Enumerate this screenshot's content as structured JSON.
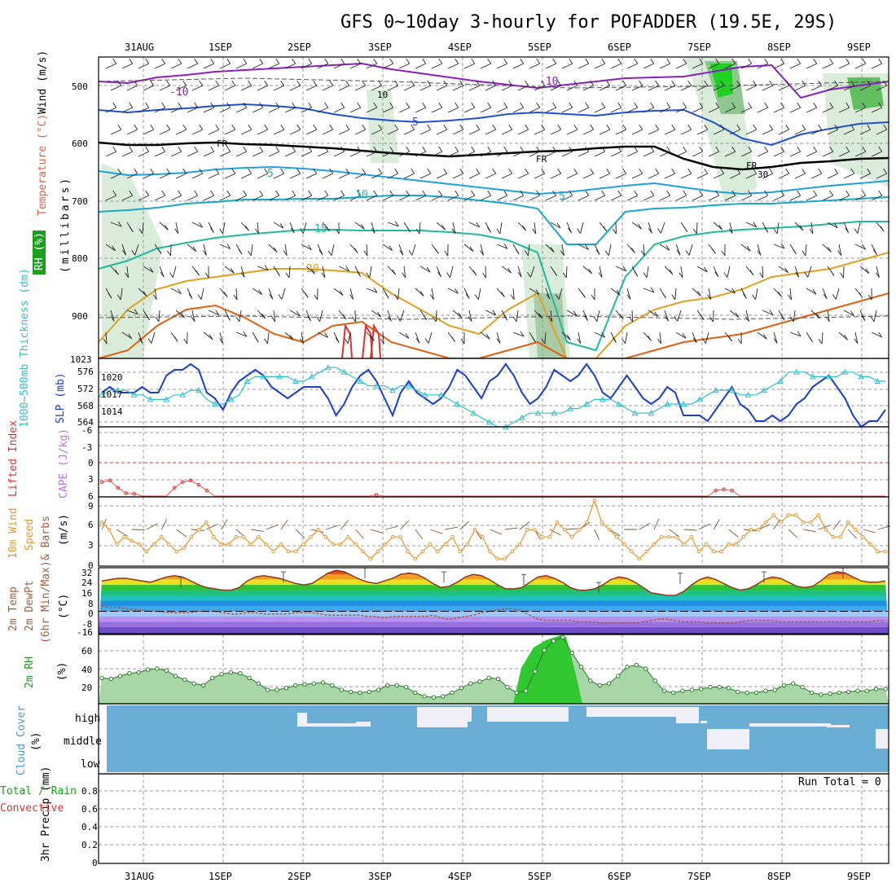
{
  "title": "GFS 0~10day 3-hourly for POFADDER (19.5E, 29S)",
  "dates": [
    "31AUG",
    "1SEP",
    "2SEP",
    "3SEP",
    "4SEP",
    "5SEP",
    "6SEP",
    "7SEP",
    "8SEP",
    "9SEP"
  ],
  "colors": {
    "temp_neg": "#8a1fc0",
    "temp_cold": "#2050d0",
    "temp_zero": "#1fa0e0",
    "temp_warm": "#20b8a0",
    "temp_hot": "#e0a020",
    "temp_hotter": "#e06010",
    "slp": "#1a3fc8",
    "thickness": "#30c0c8",
    "lifted": "#e03030",
    "wind": "#e8962a",
    "dewpt": "#a06040",
    "rh": "#1aa01a",
    "cloud": "#6aaed6",
    "cloud_gap": "#f0eef6"
  },
  "panels": {
    "upper": {
      "ylabel_wind": "Wind (m/s)",
      "ylabel_temp": "Temperature (°C)",
      "ylabel_mb": "(millibars)",
      "ylabel_rh": "RH (%)",
      "levels": [
        "500",
        "600",
        "700",
        "800",
        "900"
      ],
      "contour_labels": [
        "-10",
        "-10",
        "5",
        "FR",
        "FR",
        "FR",
        "5",
        "5",
        "10",
        "15",
        "20",
        "10",
        "30"
      ]
    },
    "slp": {
      "ylabel_thick": "1000~500mb Thickness (dm)",
      "ylabel_slp": "SLP (mb)",
      "left_ticks": [
        "576",
        "572",
        "568",
        "564"
      ],
      "right_ticks": [
        "1023",
        "1020",
        "1017",
        "1014"
      ]
    },
    "cape": {
      "ylabel_li": "Lifted Index",
      "ylabel_cape": "CAPE (J/kg)",
      "ticks": [
        "-6",
        "-3",
        "0",
        "3",
        "6"
      ]
    },
    "wind10": {
      "ylabel_a": "10m Wind",
      "ylabel_b": "Speed",
      "ylabel_c": "& Barbs",
      "ylabel_unit": "(m/s)",
      "ticks": [
        "9",
        "6",
        "3",
        "0"
      ]
    },
    "temp2m": {
      "ylabel_a": "2m Temp",
      "ylabel_b": "2m DewPt",
      "ylabel_c": "(6hr Min/Max)",
      "ylabel_unit": "(°C)",
      "ticks": [
        "32",
        "24",
        "16",
        "8",
        "0",
        "-8",
        "-16"
      ]
    },
    "rh2m": {
      "ylabel": "2m RH",
      "ylabel_unit": "(%)",
      "ticks": [
        "60",
        "40",
        "20"
      ]
    },
    "cloud": {
      "ylabel": "Cloud Cover",
      "ylabel_unit": "(%)",
      "levels": [
        "high",
        "middle",
        "low"
      ]
    },
    "precip": {
      "ylabel_a": "3hr Precip (mm)",
      "ylabel_b": "Total / Rain",
      "ylabel_c": "Convective",
      "ticks": [
        "0.8",
        "0.6",
        "0.4",
        "0.2",
        "0"
      ],
      "run_total": "Run Total = 0"
    }
  },
  "chart_data": [
    {
      "type": "line",
      "title": "Sea level pressure (mb)",
      "x": "3-hourly, 30 Aug 18Z to 9 Sep 18Z",
      "ylim": [
        1011,
        1023
      ],
      "values": [
        1017,
        1018,
        1017,
        1017,
        1017,
        1018,
        1017,
        1017,
        1020,
        1021,
        1021,
        1022,
        1021,
        1017,
        1016,
        1014,
        1017,
        1019,
        1020,
        1021,
        1020,
        1018,
        1017,
        1016,
        1017,
        1018,
        1018,
        1018,
        1016,
        1013,
        1015,
        1018,
        1020,
        1021,
        1019,
        1016,
        1013,
        1017,
        1019,
        1017,
        1016,
        1015,
        1016,
        1018,
        1021,
        1020,
        1018,
        1016,
        1019,
        1020,
        1022,
        1020,
        1017,
        1015,
        1016,
        1018,
        1021,
        1020,
        1019,
        1020,
        1022,
        1020,
        1017,
        1016,
        1018,
        1020,
        1018,
        1016,
        1015,
        1016,
        1018,
        1017,
        1013,
        1013,
        1013,
        1012,
        1014,
        1016,
        1018,
        1015,
        1014,
        1012,
        1012,
        1013,
        1012,
        1013,
        1015,
        1016,
        1018,
        1019,
        1020,
        1018,
        1016,
        1013,
        1011,
        1012,
        1012,
        1014
      ]
    },
    {
      "type": "line",
      "title": "1000~500mb thickness (dm)",
      "ylim": [
        563,
        578
      ],
      "values": [
        570,
        571,
        571,
        571,
        570,
        570,
        569,
        569,
        569,
        570,
        570,
        571,
        571,
        569,
        568,
        568,
        569,
        570,
        573,
        574,
        574,
        574,
        574,
        574,
        573,
        573,
        574,
        575,
        576,
        576,
        575,
        574,
        573,
        572,
        572,
        572,
        571,
        572,
        572,
        571,
        570,
        570,
        570,
        569,
        568,
        567,
        566,
        565,
        564,
        563,
        563,
        564,
        565,
        566,
        566,
        566,
        566,
        566,
        567,
        567,
        568,
        569,
        569,
        569,
        568,
        567,
        566,
        566,
        566,
        567,
        568,
        568,
        568,
        568,
        569,
        570,
        571,
        571,
        571,
        570,
        570,
        570,
        571,
        572,
        573,
        575,
        575,
        575,
        574,
        574,
        574,
        574,
        575,
        575,
        574,
        574,
        573,
        573
      ]
    },
    {
      "type": "line",
      "title": "Lifted Index",
      "ylim": [
        6,
        -6
      ],
      "values": [
        3.5,
        3.2,
        4.5,
        5.5,
        5.6,
        6,
        6,
        6,
        6,
        4.5,
        3.5,
        3.2,
        4,
        5,
        6,
        6,
        6,
        6,
        6,
        6,
        6,
        6,
        6,
        6,
        6,
        6,
        6,
        6,
        6,
        6,
        6,
        6,
        6,
        6,
        5.8,
        6,
        6,
        6,
        6,
        6,
        6,
        6,
        6,
        6,
        6,
        6,
        6,
        6,
        6,
        6,
        6,
        6,
        6,
        6,
        6,
        6,
        6,
        6,
        6,
        6,
        6,
        6,
        6,
        6,
        6,
        6,
        6,
        6,
        6,
        6,
        6,
        6,
        6,
        6,
        6,
        6,
        5,
        4.8,
        5,
        6,
        6,
        6,
        6,
        6,
        6,
        6,
        6,
        6,
        6,
        6,
        6,
        6,
        6,
        6,
        6,
        6,
        6,
        6
      ]
    },
    {
      "type": "line",
      "title": "10m wind speed (m/s)",
      "ylim": [
        0,
        9.5
      ],
      "values": [
        6,
        5,
        3,
        4,
        3.5,
        3,
        2,
        3,
        4,
        3,
        2,
        2.5,
        4,
        5,
        6,
        4,
        3,
        3,
        4,
        4,
        3,
        4,
        3,
        2,
        3,
        2,
        2,
        3,
        4,
        5,
        4,
        3,
        3,
        4,
        3,
        2,
        1,
        2,
        3,
        4,
        4,
        2,
        1,
        2,
        3,
        2,
        3,
        4,
        2,
        3,
        5,
        4,
        2,
        1,
        1,
        2,
        3,
        5,
        5,
        4,
        4,
        6,
        5,
        4,
        5,
        6,
        9,
        6,
        5,
        4,
        3,
        2,
        1,
        2,
        3,
        4,
        4,
        4,
        3,
        4,
        2,
        3,
        2,
        2,
        3,
        3,
        4,
        5,
        5,
        6,
        7,
        6,
        7,
        7,
        6,
        6,
        7,
        5,
        4,
        4,
        6,
        5,
        4,
        3,
        2,
        2
      ]
    },
    {
      "type": "area",
      "title": "2m temperature (°C)",
      "ylim": [
        -17,
        33
      ],
      "values": [
        23,
        24,
        25,
        25,
        24,
        23,
        22,
        24,
        26,
        27,
        26,
        23,
        20,
        18,
        17,
        16,
        16,
        18,
        23,
        26,
        27,
        26,
        25,
        23,
        21,
        20,
        21,
        25,
        29,
        31,
        30,
        27,
        24,
        22,
        21,
        23,
        25,
        28,
        29,
        28,
        25,
        21,
        18,
        19,
        22,
        26,
        28,
        27,
        24,
        20,
        17,
        17,
        18,
        22,
        26,
        27,
        25,
        22,
        18,
        16,
        16,
        17,
        20,
        24,
        26,
        25,
        22,
        18,
        14,
        13,
        12,
        12,
        15,
        20,
        24,
        26,
        24,
        21,
        18,
        16,
        17,
        20,
        24,
        26,
        25,
        22,
        19,
        18,
        19,
        23,
        28,
        30,
        29,
        26,
        23,
        22,
        22,
        23
      ]
    },
    {
      "type": "line",
      "title": "2m dew point (°C)",
      "ylim": [
        -17,
        33
      ],
      "values": [
        4,
        3,
        3,
        2,
        1,
        1,
        0,
        0,
        -1,
        -1,
        -1,
        -1,
        0,
        0,
        0,
        -1,
        -2,
        -2,
        -1,
        -1,
        -2,
        -2,
        -2,
        -2,
        -1,
        -1,
        -1,
        -2,
        -3,
        -3,
        -3,
        -3,
        -3,
        -4,
        -4,
        -5,
        -4,
        -4,
        -4,
        -4,
        -4,
        -3,
        -5,
        -6,
        -5,
        -4,
        -3,
        -1,
        0,
        1,
        2,
        2,
        0,
        -3,
        -6,
        -7,
        -7,
        -7,
        -7,
        -8,
        -8,
        -8,
        -9,
        -9,
        -9,
        -9,
        -9,
        -8,
        -7,
        -6,
        -6,
        -7,
        -8,
        -8,
        -8,
        -9,
        -9,
        -9,
        -9,
        -8,
        -7,
        -7,
        -7,
        -7,
        -8,
        -8,
        -8,
        -8,
        -8,
        -8,
        -8,
        -8,
        -8,
        -8,
        -8,
        -8,
        -7,
        -7
      ]
    },
    {
      "type": "area",
      "title": "2m relative humidity (%)",
      "ylim": [
        0,
        75
      ],
      "values": [
        28,
        27,
        30,
        33,
        34,
        37,
        38,
        36,
        30,
        26,
        22,
        20,
        28,
        32,
        34,
        33,
        28,
        22,
        15,
        15,
        17,
        20,
        21,
        22,
        23,
        20,
        15,
        13,
        12,
        13,
        15,
        20,
        20,
        18,
        12,
        8,
        7,
        8,
        12,
        17,
        22,
        24,
        28,
        27,
        18,
        12,
        14,
        35,
        58,
        68,
        72,
        55,
        40,
        25,
        20,
        22,
        30,
        40,
        42,
        38,
        25,
        14,
        12,
        14,
        15,
        16,
        18,
        18,
        17,
        13,
        12,
        12,
        14,
        15,
        20,
        22,
        18,
        12,
        10,
        11,
        12,
        13,
        14,
        14,
        16,
        16
      ]
    },
    {
      "type": "bar",
      "title": "3hr Precip (mm)",
      "ylim": [
        0,
        1
      ],
      "values": []
    }
  ]
}
